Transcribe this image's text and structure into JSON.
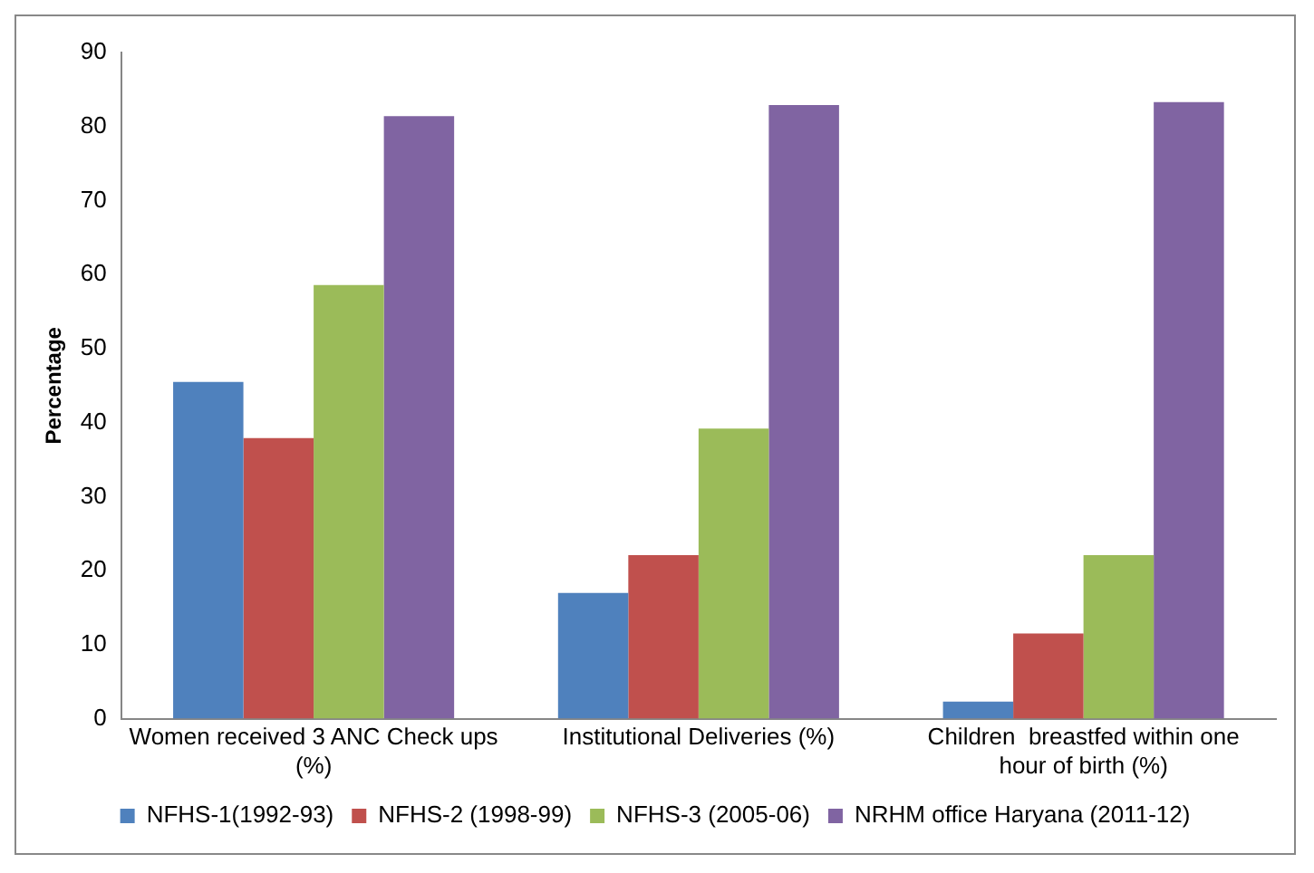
{
  "chart_data": {
    "type": "bar",
    "ylabel": "Percentage",
    "categories": [
      "Women received 3 ANC Check ups (%)",
      "Institutional Deliveries (%)",
      "Children  breastfed within one hour of birth (%)"
    ],
    "series": [
      {
        "name": "NFHS-1(1992-93)",
        "color": "#4f81bd",
        "values": [
          45.5,
          17.0,
          2.3
        ]
      },
      {
        "name": "NFHS-2 (1998-99)",
        "color": "#c0504d",
        "values": [
          37.9,
          22.1,
          11.5
        ]
      },
      {
        "name": "NFHS-3 (2005-06)",
        "color": "#9bbb59",
        "values": [
          58.6,
          39.2,
          22.1
        ]
      },
      {
        "name": "NRHM office Haryana (2011-12)",
        "color": "#8064a2",
        "values": [
          81.4,
          82.9,
          83.3
        ]
      }
    ],
    "ylim": [
      0,
      90
    ],
    "yticks": [
      0,
      10,
      20,
      30,
      40,
      50,
      60,
      70,
      80,
      90
    ],
    "grid": false,
    "legend": "bottom"
  }
}
